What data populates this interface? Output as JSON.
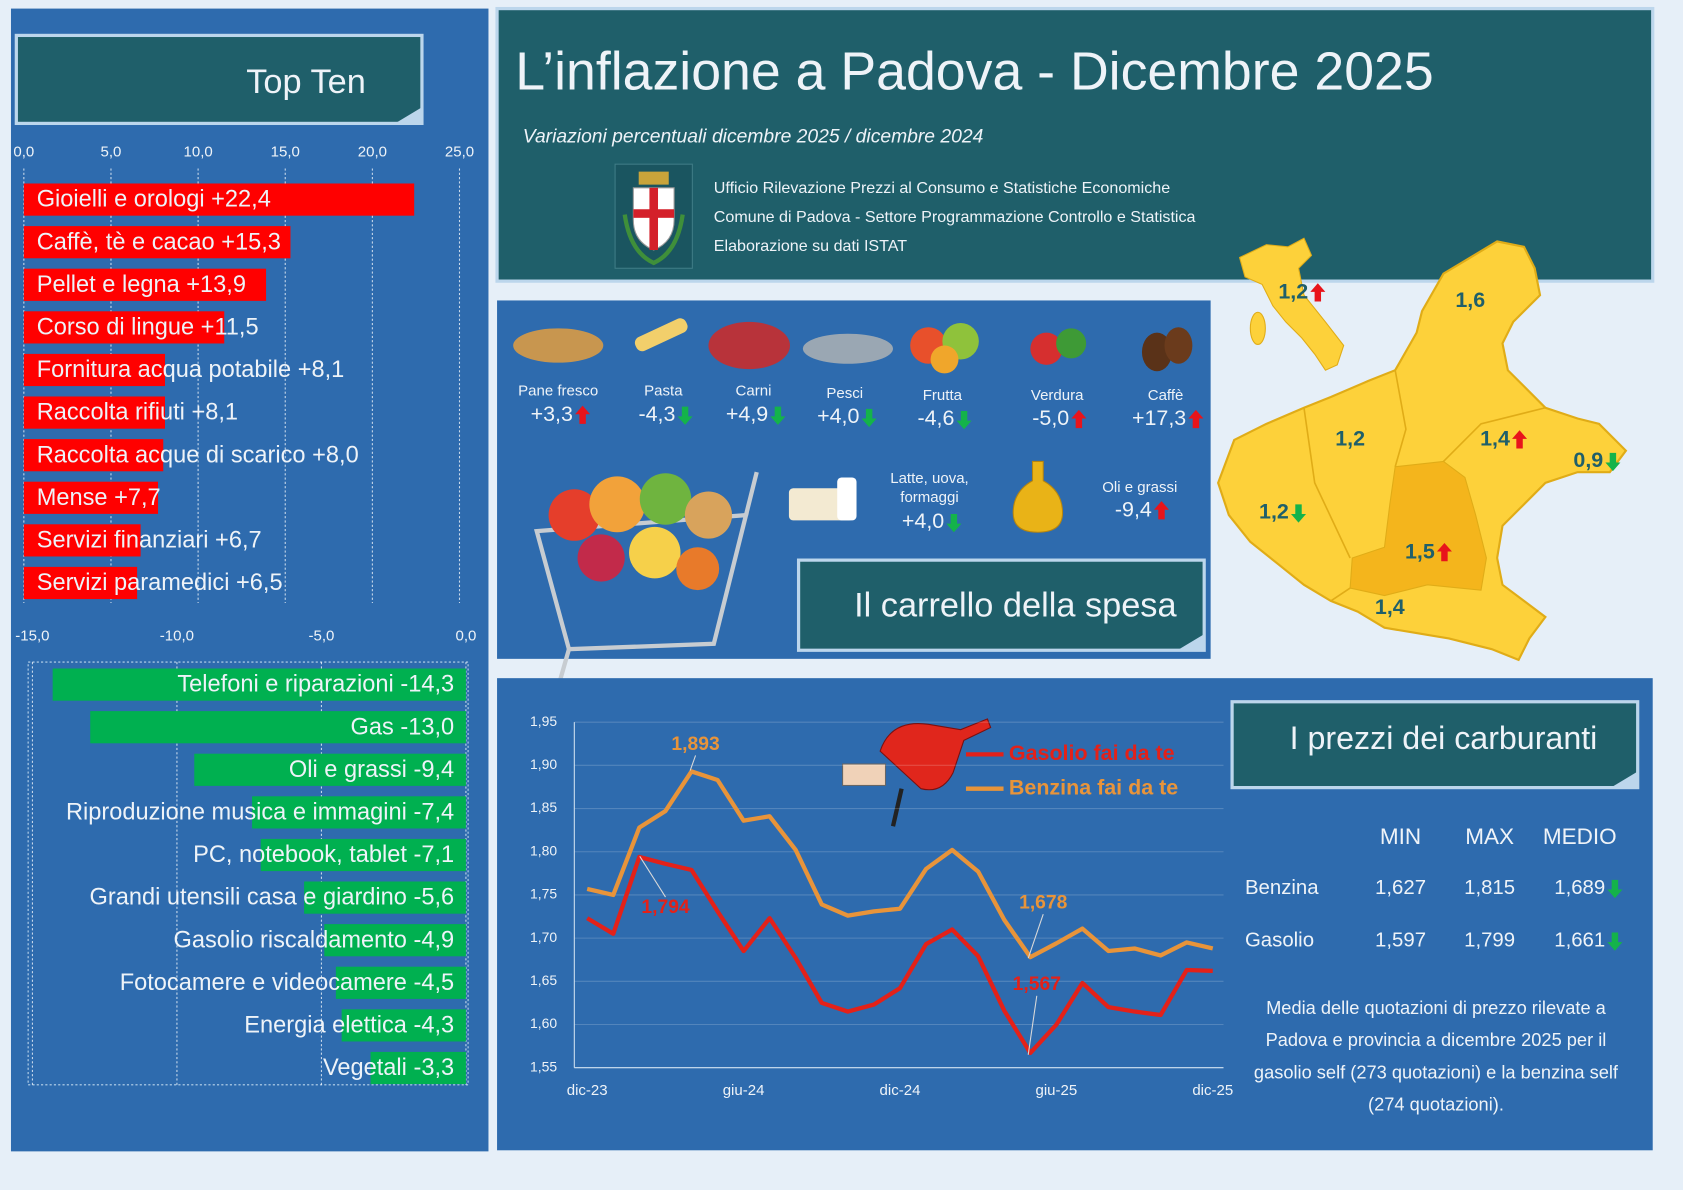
{
  "header": {
    "title": "L’inflazione a Padova - Dicembre 2025",
    "subtitle": "Variazioni percentuali dicembre 2025 / dicembre 2024",
    "office": [
      "Ufficio Rilevazione Prezzi al Consumo e Statistiche Economiche",
      "Comune di Padova -  Settore Programmazione Controllo e Statistica",
      "Elaborazione su dati ISTAT"
    ]
  },
  "top_ten_title": "Top Ten",
  "chart_data": [
    {
      "type": "bar",
      "orientation": "horizontal",
      "categories": [
        "Gioielli e orologi",
        "Caffè, tè e cacao",
        "Pellet e legna",
        "Corso di lingue",
        "Fornitura acqua potabile",
        "Raccolta rifiuti",
        "Raccolta acque di scarico",
        "Mense",
        "Servizi finanziari",
        "Servizi paramedici"
      ],
      "values": [
        22.4,
        15.3,
        13.9,
        11.5,
        8.1,
        8.1,
        8.0,
        7.7,
        6.7,
        6.5
      ],
      "value_labels": [
        "+22,4",
        "+15,3",
        "+13,9",
        "+11,5",
        "+8,1",
        "+8,1",
        "+8,0",
        "+7,7",
        "+6,7",
        "+6,5"
      ],
      "color": "#ff0000",
      "xlim": [
        0,
        25
      ],
      "xticks": [
        {
          "value": 0,
          "label": "0,0"
        },
        {
          "value": 5,
          "label": "5,0"
        },
        {
          "value": 10,
          "label": "10,0"
        },
        {
          "value": 15,
          "label": "15,0"
        },
        {
          "value": 20,
          "label": "20,0"
        },
        {
          "value": 25,
          "label": "25,0"
        }
      ],
      "grid": true
    },
    {
      "type": "bar",
      "orientation": "horizontal",
      "categories": [
        "Telefoni e riparazioni",
        "Gas",
        "Oli e grassi",
        "Riproduzione musica e immagini",
        "PC, notebook, tablet",
        "Grandi utensili casa e giardino",
        "Gasolio riscaldamento",
        "Fotocamere e videocamere",
        "Energia elettica",
        "Vegetali"
      ],
      "values": [
        -14.3,
        -13.0,
        -9.4,
        -7.4,
        -7.1,
        -5.6,
        -4.9,
        -4.5,
        -4.3,
        -3.3
      ],
      "value_labels": [
        "-14,3",
        "-13,0",
        "-9,4",
        "-7,4",
        "-7,1",
        "-5,6",
        "-4,9",
        "-4,5",
        "-4,3",
        "-3,3"
      ],
      "color": "#00b050",
      "xlim": [
        -15,
        0
      ],
      "xticks": [
        {
          "value": -15,
          "label": "-15,0"
        },
        {
          "value": -10,
          "label": "-10,0"
        },
        {
          "value": -5,
          "label": "-5,0"
        },
        {
          "value": 0,
          "label": "0,0"
        }
      ],
      "grid": true
    },
    {
      "type": "line",
      "title": "I prezzi dei carburanti",
      "categories": [
        "dic-23",
        null,
        null,
        null,
        null,
        null,
        "giu-24",
        null,
        null,
        null,
        null,
        null,
        "dic-24",
        null,
        null,
        null,
        null,
        null,
        "giu-25",
        null,
        null,
        null,
        null,
        null,
        "dic-25"
      ],
      "series": [
        {
          "name": "Gasolio fai da te",
          "color": "#e32119",
          "values": [
            1.723,
            1.705,
            1.794,
            1.786,
            1.779,
            1.731,
            1.685,
            1.723,
            1.677,
            1.625,
            1.615,
            1.623,
            1.642,
            1.693,
            1.71,
            1.679,
            1.616,
            1.567,
            1.6,
            1.648,
            1.62,
            1.615,
            1.611,
            1.663,
            1.662
          ]
        },
        {
          "name": "Benzina fai da te",
          "color": "#e8943a",
          "values": [
            1.757,
            1.75,
            1.828,
            1.847,
            1.893,
            1.883,
            1.836,
            1.841,
            1.802,
            1.739,
            1.726,
            1.731,
            1.734,
            1.78,
            1.802,
            1.777,
            1.721,
            1.678,
            1.694,
            1.711,
            1.685,
            1.688,
            1.68,
            1.695,
            1.688
          ]
        }
      ],
      "ylim": [
        1.55,
        1.95
      ],
      "yticks": [
        {
          "value": 1.55,
          "label": "1,55"
        },
        {
          "value": 1.6,
          "label": "1,60"
        },
        {
          "value": 1.65,
          "label": "1,65"
        },
        {
          "value": 1.7,
          "label": "1,70"
        },
        {
          "value": 1.75,
          "label": "1,75"
        },
        {
          "value": 1.8,
          "label": "1,80"
        },
        {
          "value": 1.85,
          "label": "1,85"
        },
        {
          "value": 1.9,
          "label": "1,90"
        },
        {
          "value": 1.95,
          "label": "1,95"
        }
      ],
      "annotations": [
        "1,893",
        "1,794",
        "1,678",
        "1,567"
      ],
      "legend": "top-right",
      "grid": true
    }
  ],
  "cart": {
    "title": "Il carrello della spesa",
    "items": [
      {
        "name": "Pane fresco",
        "value": "+3,3",
        "trend": "up"
      },
      {
        "name": "Pasta",
        "value": "-4,3",
        "trend": "down"
      },
      {
        "name": "Carni",
        "value": "+4,9",
        "trend": "down"
      },
      {
        "name": "Pesci",
        "value": "+4,0",
        "trend": "down"
      },
      {
        "name": "Frutta",
        "value": "-4,6",
        "trend": "down"
      },
      {
        "name": "Verdura",
        "value": "-5,0",
        "trend": "up"
      },
      {
        "name": "Caffè",
        "value": "+17,3",
        "trend": "up"
      },
      {
        "name": "Latte, uova, formaggi",
        "value": "+4,0",
        "trend": "down"
      },
      {
        "name": "Oli e grassi",
        "value": "-9,4",
        "trend": "up"
      }
    ]
  },
  "map": {
    "labels": [
      {
        "value": "1,2",
        "trend": "up"
      },
      {
        "value": "1,6"
      },
      {
        "value": "1,2"
      },
      {
        "value": "1,4",
        "trend": "up"
      },
      {
        "value": "0,9",
        "trend": "down"
      },
      {
        "value": "1,2",
        "trend": "down"
      },
      {
        "value": "1,5",
        "trend": "up"
      },
      {
        "value": "1,4"
      }
    ]
  },
  "fuel_table": {
    "columns": [
      "MIN",
      "MAX",
      "MEDIO"
    ],
    "rows": [
      {
        "name": "Benzina",
        "values": [
          "1,627",
          "1,815",
          "1,689"
        ],
        "trend": "down"
      },
      {
        "name": "Gasolio",
        "values": [
          "1,597",
          "1,799",
          "1,661"
        ],
        "trend": "down"
      }
    ]
  },
  "note": "Media delle quotazioni di prezzo rilevate a Padova e provincia a dicembre 2025 per il gasolio self (273 quotazioni) e la benzina self (274 quotazioni)."
}
